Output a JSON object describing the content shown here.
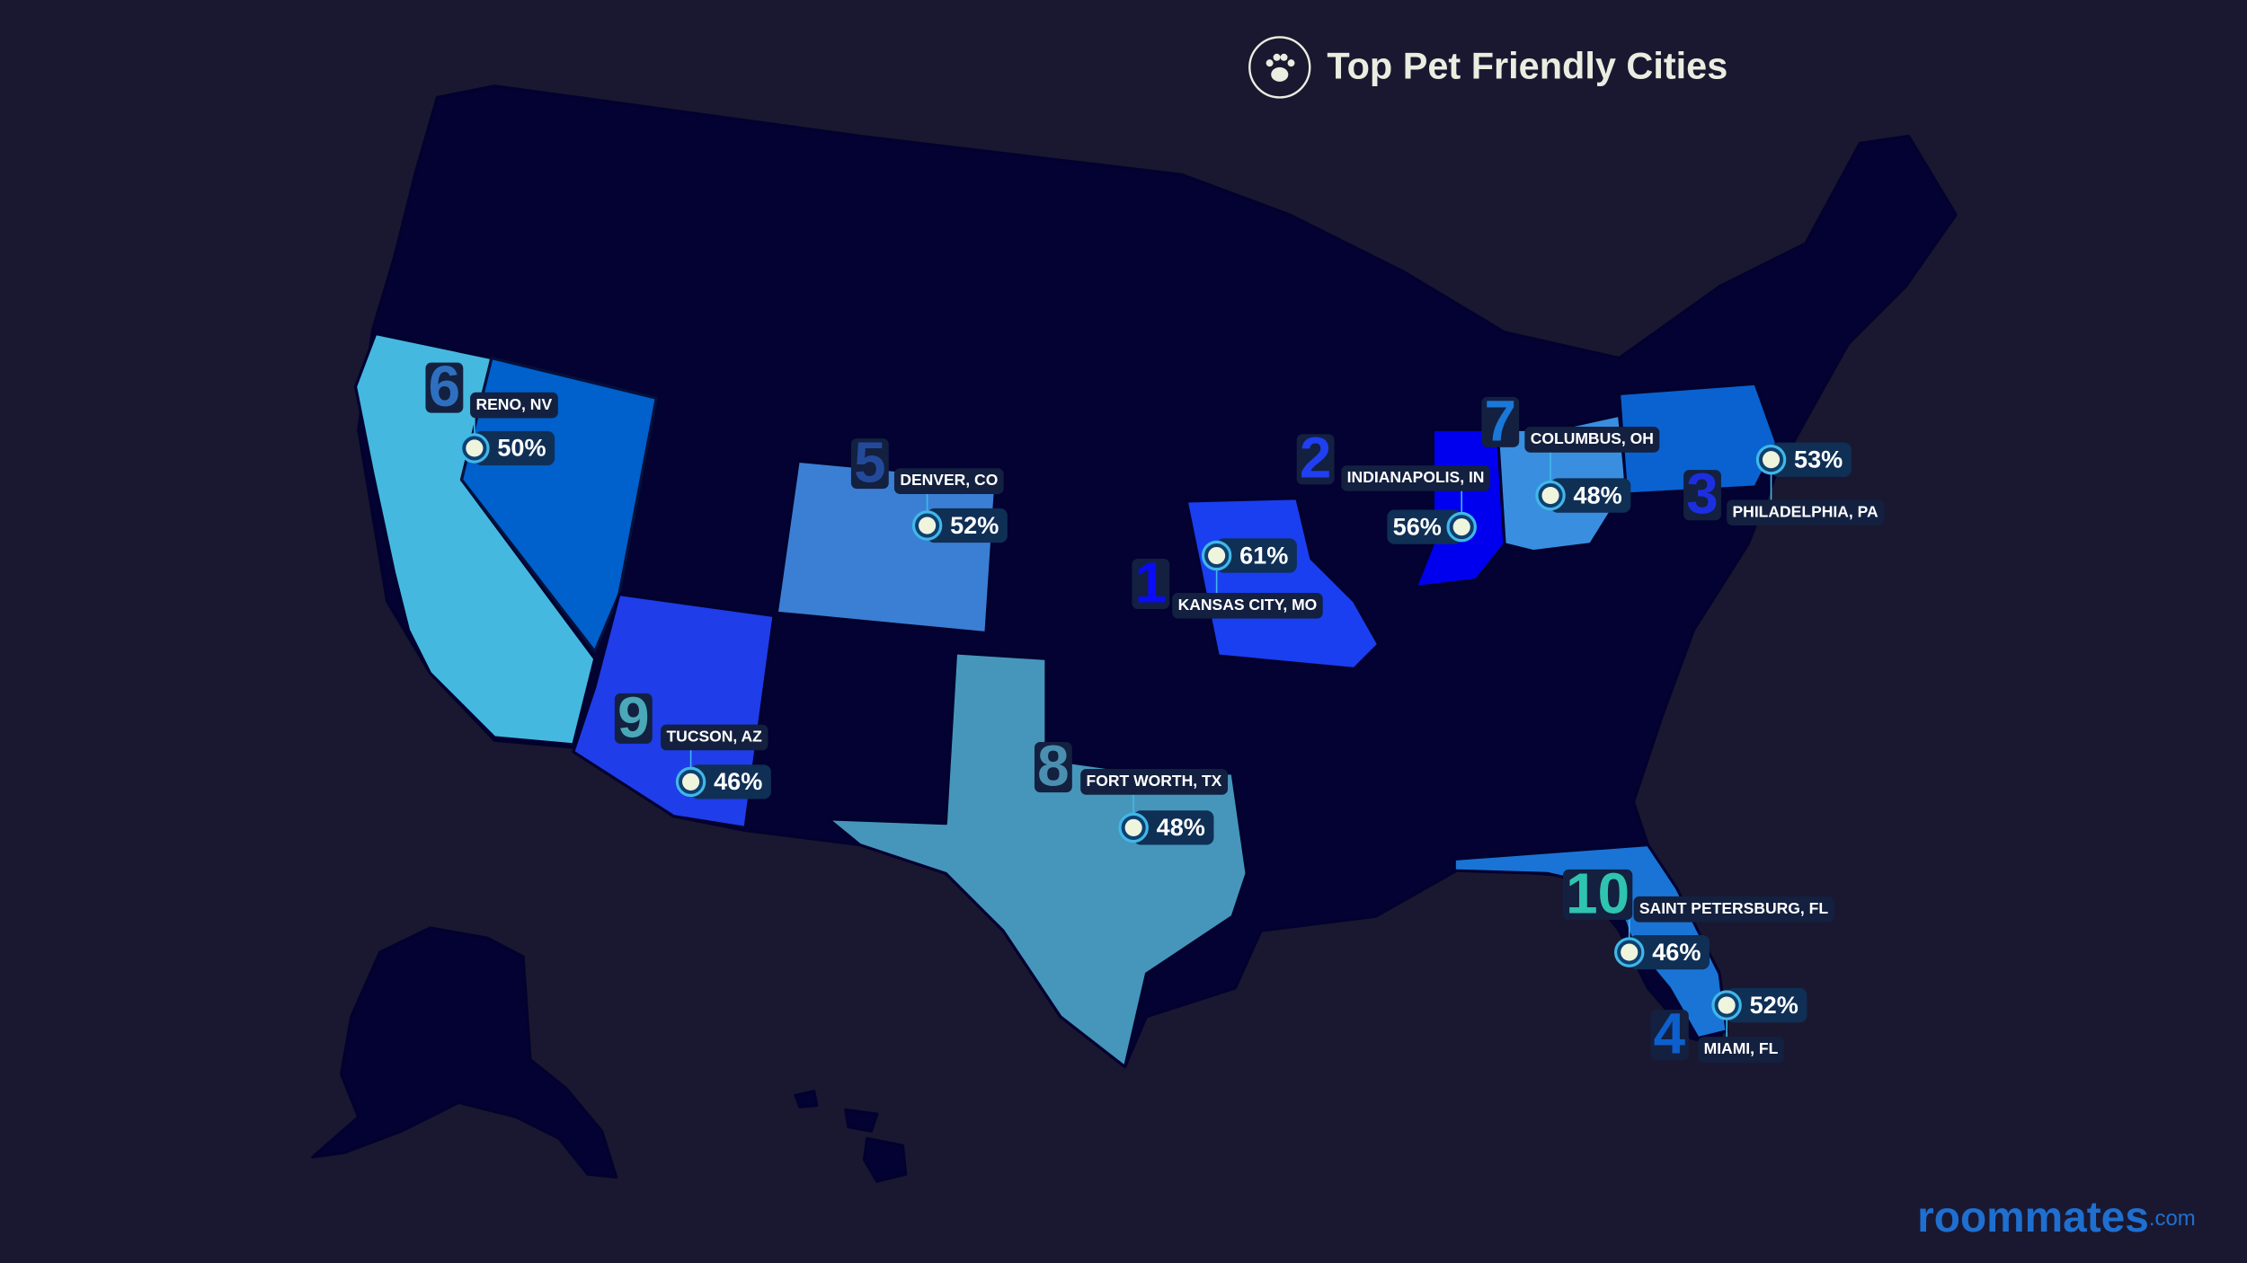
{
  "header": {
    "title": "Top Pet Friendly Cities"
  },
  "cities": [
    {
      "rank": "1",
      "name": "KANSAS CITY, MO",
      "percent": "61%",
      "color": "#0a0cf5"
    },
    {
      "rank": "2",
      "name": "INDIANAPOLIS, IN",
      "percent": "56%",
      "color": "#1f3ff0"
    },
    {
      "rank": "3",
      "name": "PHILADELPHIA, PA",
      "percent": "53%",
      "color": "#1c2fe0"
    },
    {
      "rank": "4",
      "name": "MIAMI, FL",
      "percent": "52%",
      "color": "#0d5fcc"
    },
    {
      "rank": "5",
      "name": "DENVER, CO",
      "percent": "52%",
      "color": "#234a9a"
    },
    {
      "rank": "6",
      "name": "RENO, NV",
      "percent": "50%",
      "color": "#2f6fc0"
    },
    {
      "rank": "7",
      "name": "COLUMBUS, OH",
      "percent": "48%",
      "color": "#1a78d8"
    },
    {
      "rank": "8",
      "name": "FORT WORTH, TX",
      "percent": "48%",
      "color": "#4a8fb0"
    },
    {
      "rank": "9",
      "name": "TUCSON, AZ",
      "percent": "46%",
      "color": "#4aa8b8"
    },
    {
      "rank": "10",
      "name": "SAINT PETERSBURG, FL",
      "percent": "46%",
      "color": "#2fc4b0"
    }
  ],
  "brand": {
    "name": "roommates",
    "suffix": ".com"
  }
}
